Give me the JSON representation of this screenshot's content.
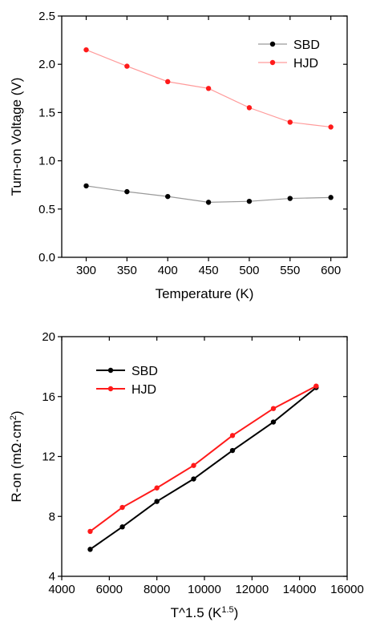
{
  "chart_data": [
    {
      "type": "line",
      "xlabel": "Temperature (K)",
      "ylabel": "Turn-on Voltage (V)",
      "xlim": [
        270,
        620
      ],
      "ylim": [
        0.0,
        2.5
      ],
      "xticks": [
        "300",
        "350",
        "400",
        "450",
        "500",
        "550",
        "600"
      ],
      "yticks": [
        "0.0",
        "0.5",
        "1.0",
        "1.5",
        "2.0",
        "2.5"
      ],
      "legend_position": "top-right",
      "x": [
        300,
        350,
        400,
        450,
        500,
        550,
        600
      ],
      "series": [
        {
          "name": "SBD",
          "color": "#000000",
          "line_color": "#9a9a9a",
          "values": [
            0.74,
            0.68,
            0.63,
            0.57,
            0.58,
            0.61,
            0.62
          ]
        },
        {
          "name": "HJD",
          "color": "#ff1a1a",
          "line_color": "#ff9a9a",
          "values": [
            2.15,
            1.98,
            1.82,
            1.75,
            1.55,
            1.4,
            1.35
          ]
        }
      ]
    },
    {
      "type": "line",
      "xlabel": "T^1.5 (K",
      "xlabel_sup": "1.5",
      "xlabel_end": ")",
      "ylabel": "R-on (mΩ·cm",
      "ylabel_sup": "2",
      "ylabel_end": ")",
      "xlim": [
        4000,
        16000
      ],
      "ylim": [
        4,
        20
      ],
      "xticks": [
        "4000",
        "6000",
        "8000",
        "10000",
        "12000",
        "14000",
        "16000"
      ],
      "yticks": [
        "4",
        "8",
        "12",
        "16",
        "20"
      ],
      "legend_position": "top-left",
      "x": [
        5196,
        6548,
        8000,
        9546,
        11180,
        12899,
        14697
      ],
      "series": [
        {
          "name": "SBD",
          "color": "#000000",
          "line_color": "#000000",
          "values": [
            5.8,
            7.3,
            9.0,
            10.5,
            12.4,
            14.3,
            16.6
          ]
        },
        {
          "name": "HJD",
          "color": "#ff1a1a",
          "line_color": "#ff1a1a",
          "values": [
            7.0,
            8.6,
            9.9,
            11.4,
            13.4,
            15.2,
            16.7
          ]
        }
      ]
    }
  ]
}
